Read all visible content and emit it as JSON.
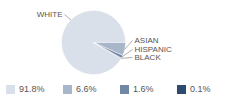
{
  "chart_data": {
    "type": "pie",
    "categories": [
      "WHITE",
      "ASIAN",
      "HISPANIC",
      "BLACK"
    ],
    "values": [
      91.8,
      6.6,
      1.6,
      0.1
    ],
    "value_labels": [
      "91.8%",
      "6.6%",
      "1.6%",
      "0.1%"
    ],
    "colors": [
      "#d9e0ea",
      "#a7b6c9",
      "#7088a6",
      "#2d4b6e"
    ],
    "legend": "bottom"
  }
}
